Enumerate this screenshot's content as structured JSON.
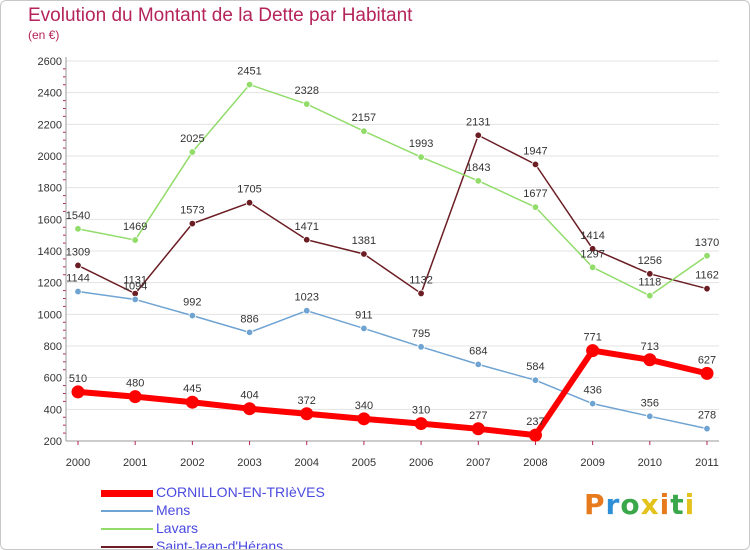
{
  "title": "Evolution du Montant de la Dette par Habitant",
  "subtitle": "(en €)",
  "logo": [
    "P",
    "r",
    "o",
    "x",
    "i",
    "t",
    "i"
  ],
  "chart_data": {
    "type": "line",
    "x": [
      "2000",
      "2001",
      "2002",
      "2003",
      "2004",
      "2005",
      "2006",
      "2007",
      "2008",
      "2009",
      "2010",
      "2011"
    ],
    "ylim": [
      200,
      2600
    ],
    "yticks": [
      "200",
      "400",
      "600",
      "800",
      "1000",
      "1200",
      "1400",
      "1600",
      "1800",
      "2000",
      "2200",
      "2400",
      "2600"
    ],
    "grid": "horizontal",
    "legend_position": "bottom-left",
    "series": [
      {
        "name": "Saint-Jean-d'Hérans",
        "color": "#6b1d24",
        "values": [
          1309,
          1131,
          1573,
          1705,
          1471,
          1381,
          1132,
          2131,
          1947,
          1414,
          1256,
          1162
        ],
        "labels": [
          "1309",
          "1131",
          "1573",
          "1705",
          "1471",
          "1381",
          "1132",
          "2131",
          "1947",
          "1414",
          "1256",
          "1162"
        ]
      },
      {
        "name": "Lavars",
        "color": "#92dc6a",
        "values": [
          1540,
          1469,
          2025,
          2451,
          2328,
          2157,
          1993,
          1843,
          1677,
          1297,
          1118,
          1370
        ],
        "labels": [
          "1540",
          "1469",
          "2025",
          "2451",
          "2328",
          "2157",
          "1993",
          "1843",
          "1677",
          "1297",
          "1118",
          "1370"
        ]
      },
      {
        "name": "Mens",
        "color": "#6fa3d2",
        "values": [
          1144,
          1094,
          992,
          886,
          1023,
          911,
          795,
          684,
          584,
          436,
          356,
          278
        ],
        "labels": [
          "1144",
          "1094",
          "992",
          "886",
          "1023",
          "911",
          "795",
          "684",
          "584",
          "436",
          "356",
          "278"
        ]
      },
      {
        "name": "CORNILLON-EN-TRIèVES",
        "color": "#ff0000",
        "values": [
          510,
          480,
          445,
          404,
          372,
          340,
          310,
          277,
          237,
          771,
          713,
          627
        ],
        "labels": [
          "510",
          "480",
          "445",
          "404",
          "372",
          "340",
          "310",
          "277",
          "237",
          "771",
          "713",
          "627"
        ]
      }
    ],
    "legend": [
      {
        "name": "CORNILLON-EN-TRIèVES",
        "color": "#ff0000",
        "text_color": "#4a4ae0",
        "thick": true
      },
      {
        "name": "Mens",
        "color": "#6fa3d2",
        "text_color": "#4a4ae0",
        "thick": false
      },
      {
        "name": "Lavars",
        "color": "#92dc6a",
        "text_color": "#4a4ae0",
        "thick": false
      },
      {
        "name": "Saint-Jean-d'Hérans",
        "color": "#6b1d24",
        "text_color": "#4a4ae0",
        "thick": false
      }
    ]
  }
}
